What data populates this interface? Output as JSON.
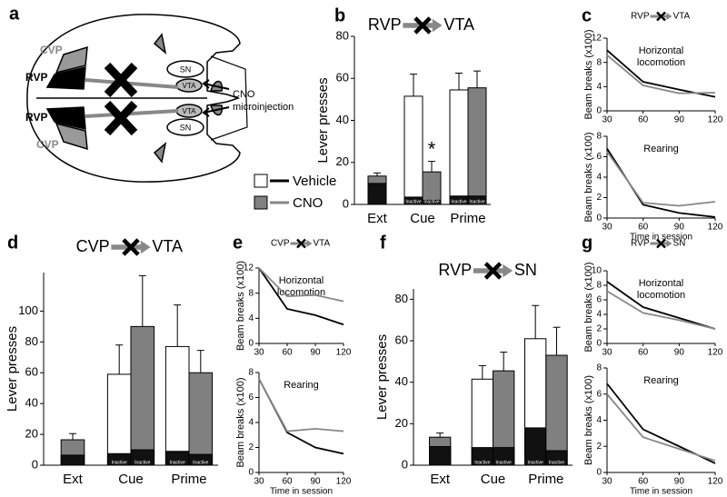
{
  "panel_labels": [
    "a",
    "b",
    "c",
    "d",
    "e",
    "f",
    "g"
  ],
  "diagram": {
    "labels": [
      "CVP",
      "RVP",
      "SN",
      "VTA",
      "RVP",
      "CVP",
      "VTA",
      "SN"
    ],
    "injection": [
      "CNO",
      "microinjection"
    ]
  },
  "chart_data": [
    {
      "type": "bar",
      "source": "RVP",
      "target": "VTA",
      "ylabel": "Lever presses",
      "categories": [
        "Ext",
        "Cue",
        "Prime"
      ],
      "ylim": [
        0,
        80
      ],
      "yticks": [
        0,
        20,
        40,
        60,
        80
      ],
      "inactive_label": "Inactive",
      "annotation": "*",
      "series": [
        {
          "name": "Vehicle",
          "color": "#ffffff",
          "values": [
            null,
            51.5,
            54.5
          ],
          "errors": [
            null,
            10.5,
            8
          ],
          "inactive": [
            null,
            3.5,
            4
          ]
        },
        {
          "name": "CNO",
          "color": "#808080",
          "values": [
            13.5,
            15.5,
            55.5
          ],
          "errors": [
            1.5,
            5,
            8
          ],
          "inactive": [
            10,
            2,
            4
          ]
        }
      ]
    },
    {
      "type": "line",
      "source": "RVP",
      "target": "VTA",
      "title": [
        "Horizontal",
        "locomotion"
      ],
      "ylabel": "Beam breaks (x100)",
      "x": [
        30,
        60,
        90,
        120
      ],
      "xlim": [
        30,
        120
      ],
      "xticks": [
        30,
        60,
        90,
        120
      ],
      "ylim": [
        0,
        12
      ],
      "yticks": [
        0,
        4,
        8,
        12
      ],
      "series": [
        {
          "name": "Vehicle",
          "color": "#000000",
          "values": [
            10,
            4.8,
            3.5,
            2.3
          ]
        },
        {
          "name": "CNO",
          "color": "#888888",
          "values": [
            9.2,
            4.2,
            2.9,
            3.0
          ]
        }
      ]
    },
    {
      "type": "line",
      "title": [
        "Rearing"
      ],
      "ylabel": "Beam breaks (x100)",
      "xlabel": "Time in session",
      "x": [
        30,
        60,
        90,
        120
      ],
      "xlim": [
        30,
        120
      ],
      "xticks": [
        30,
        60,
        90,
        120
      ],
      "ylim": [
        0,
        8
      ],
      "yticks": [
        0,
        2,
        4,
        6,
        8
      ],
      "series": [
        {
          "name": "Vehicle",
          "color": "#000000",
          "values": [
            6.8,
            1.3,
            0.5,
            0.1
          ]
        },
        {
          "name": "CNO",
          "color": "#888888",
          "values": [
            6.5,
            1.5,
            1.2,
            1.6
          ]
        }
      ]
    },
    {
      "type": "bar",
      "source": "CVP",
      "target": "VTA",
      "ylabel": "Lever presses",
      "categories": [
        "Ext",
        "Cue",
        "Prime"
      ],
      "ylim": [
        0,
        125
      ],
      "yticks": [
        0,
        20,
        40,
        60,
        80,
        100
      ],
      "inactive_label": "Inactive",
      "series": [
        {
          "name": "Vehicle",
          "color": "#ffffff",
          "values": [
            null,
            59,
            77
          ],
          "errors": [
            null,
            19,
            27
          ],
          "inactive": [
            null,
            7.5,
            9
          ]
        },
        {
          "name": "CNO",
          "color": "#808080",
          "values": [
            16.5,
            90,
            60
          ],
          "errors": [
            4,
            33,
            14.5
          ],
          "inactive": [
            6.5,
            10,
            7
          ]
        }
      ]
    },
    {
      "type": "line",
      "source": "CVP",
      "target": "VTA",
      "title": [
        "Horizontal",
        "locomotion"
      ],
      "ylabel": "Beam breaks (x100)",
      "x": [
        30,
        60,
        90,
        120
      ],
      "xlim": [
        30,
        120
      ],
      "xticks": [
        30,
        60,
        90,
        120
      ],
      "ylim": [
        0,
        12
      ],
      "yticks": [
        0,
        4,
        8,
        12
      ],
      "series": [
        {
          "name": "Vehicle",
          "color": "#000000",
          "values": [
            12,
            5.5,
            4.5,
            3
          ]
        },
        {
          "name": "CNO",
          "color": "#888888",
          "values": [
            12,
            7.5,
            7.7,
            6.7
          ]
        }
      ]
    },
    {
      "type": "line",
      "title": [
        "Rearing"
      ],
      "ylabel": "Beam breaks (x100)",
      "xlabel": "Time in session",
      "x": [
        30,
        60,
        90,
        120
      ],
      "xlim": [
        30,
        120
      ],
      "xticks": [
        30,
        60,
        90,
        120
      ],
      "ylim": [
        0,
        8
      ],
      "yticks": [
        0,
        2,
        4,
        6,
        8
      ],
      "series": [
        {
          "name": "Vehicle",
          "color": "#000000",
          "values": [
            7.5,
            3.2,
            2.0,
            1.5
          ]
        },
        {
          "name": "CNO",
          "color": "#888888",
          "values": [
            7.5,
            3.3,
            3.5,
            3.3
          ]
        }
      ]
    },
    {
      "type": "bar",
      "source": "RVP",
      "target": "SN",
      "ylabel": "Lever presses",
      "categories": [
        "Ext",
        "Cue",
        "Prime"
      ],
      "ylim": [
        0,
        85
      ],
      "yticks": [
        0,
        20,
        40,
        60,
        80
      ],
      "inactive_label": "Inactive",
      "series": [
        {
          "name": "Vehicle",
          "color": "#ffffff",
          "values": [
            null,
            41.5,
            61
          ],
          "errors": [
            null,
            6.5,
            16
          ],
          "inactive": [
            null,
            8.5,
            18
          ]
        },
        {
          "name": "CNO",
          "color": "#808080",
          "values": [
            13.5,
            45.5,
            53
          ],
          "errors": [
            2,
            9,
            13.5
          ],
          "inactive": [
            9,
            8.5,
            7
          ]
        }
      ]
    },
    {
      "type": "line",
      "source": "RVP",
      "target": "SN",
      "title": [
        "Horizontal",
        "locomotion"
      ],
      "ylabel": "Beam breaks (x100)",
      "x": [
        30,
        60,
        90,
        120
      ],
      "xlim": [
        30,
        120
      ],
      "xticks": [
        30,
        60,
        90,
        120
      ],
      "ylim": [
        0,
        10
      ],
      "yticks": [
        0,
        2,
        4,
        6,
        8,
        10
      ],
      "series": [
        {
          "name": "Vehicle",
          "color": "#000000",
          "values": [
            8.5,
            5,
            3.5,
            2
          ]
        },
        {
          "name": "CNO",
          "color": "#888888",
          "values": [
            7.2,
            4.2,
            3.2,
            2
          ]
        }
      ]
    },
    {
      "type": "line",
      "title": [
        "Rearing"
      ],
      "ylabel": "Beam breaks (x100)",
      "xlabel": "Time in session",
      "x": [
        30,
        60,
        90,
        120
      ],
      "xlim": [
        30,
        120
      ],
      "xticks": [
        30,
        60,
        90,
        120
      ],
      "ylim": [
        0,
        8
      ],
      "yticks": [
        0,
        2,
        4,
        6,
        8
      ],
      "series": [
        {
          "name": "Vehicle",
          "color": "#000000",
          "values": [
            6.8,
            3.3,
            2,
            0.7
          ]
        },
        {
          "name": "CNO",
          "color": "#888888",
          "values": [
            6.0,
            2.7,
            1.8,
            0.9
          ]
        }
      ]
    }
  ]
}
